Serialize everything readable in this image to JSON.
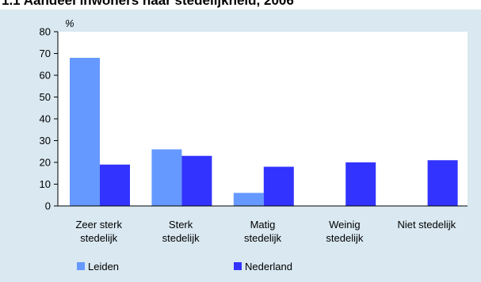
{
  "title": "1.1 Aandeel inwoners naar stedelijkheid, 2006",
  "chart_data": {
    "type": "bar",
    "ylabel": "%",
    "ylim": [
      0,
      80
    ],
    "yticks": [
      0,
      10,
      20,
      30,
      40,
      50,
      60,
      70,
      80
    ],
    "categories": [
      [
        "Zeer sterk",
        "stedelijk"
      ],
      [
        "Sterk",
        "stedelijk"
      ],
      [
        "Matig",
        "stedelijk"
      ],
      [
        "Weinig",
        "stedelijk"
      ],
      [
        "Niet stedelijk"
      ]
    ],
    "series": [
      {
        "name": "Leiden",
        "color": "#6699ff",
        "values": [
          68,
          26,
          6,
          0,
          0
        ]
      },
      {
        "name": "Nederland",
        "color": "#3333ff",
        "values": [
          19,
          23,
          18,
          20,
          21
        ]
      }
    ],
    "grid": false,
    "legend_position": "bottom"
  }
}
